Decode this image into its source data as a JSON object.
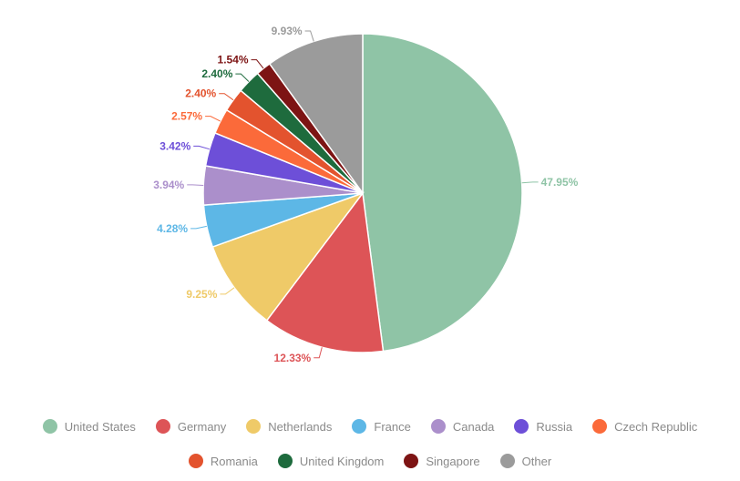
{
  "chart_data": {
    "type": "pie",
    "slices": [
      {
        "name": "United States",
        "value": 47.95,
        "label": "47.95%",
        "color": "#8fc4a6"
      },
      {
        "name": "Germany",
        "value": 12.33,
        "label": "12.33%",
        "color": "#dd5457"
      },
      {
        "name": "Netherlands",
        "value": 9.25,
        "label": "9.25%",
        "color": "#efca68"
      },
      {
        "name": "France",
        "value": 4.28,
        "label": "4.28%",
        "color": "#5db7e6"
      },
      {
        "name": "Canada",
        "value": 3.94,
        "label": "3.94%",
        "color": "#ab8fcb"
      },
      {
        "name": "Russia",
        "value": 3.42,
        "label": "3.42%",
        "color": "#6d4fd8"
      },
      {
        "name": "Czech Republic",
        "value": 2.57,
        "label": "2.57%",
        "color": "#fb6a3a"
      },
      {
        "name": "Romania",
        "value": 2.4,
        "label": "2.40%",
        "color": "#e3532e"
      },
      {
        "name": "United Kingdom",
        "value": 2.4,
        "label": "2.40%",
        "color": "#1e6b3d"
      },
      {
        "name": "Singapore",
        "value": 1.54,
        "label": "1.54%",
        "color": "#7d1414"
      },
      {
        "name": "Other",
        "value": 9.93,
        "label": "9.93%",
        "color": "#9b9b9b"
      }
    ],
    "legend_position": "bottom"
  }
}
